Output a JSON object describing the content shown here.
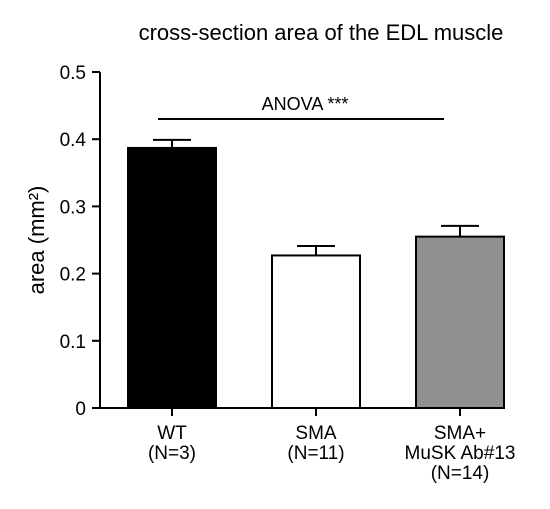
{
  "chart_data": {
    "type": "bar",
    "title": "cross-section area of the EDL muscle",
    "xlabel": "",
    "ylabel": "area (mm²)",
    "ylim": [
      0,
      0.5
    ],
    "yticks": [
      0,
      0.1,
      0.2,
      0.3,
      0.4,
      0.5
    ],
    "ytick_labels": [
      "0",
      "0.1",
      "0.2",
      "0.3",
      "0.4",
      "0.5"
    ],
    "categories": [
      [
        "WT",
        "(N=3)"
      ],
      [
        "SMA",
        "(N=11)"
      ],
      [
        "SMA+",
        "MuSK Ab#13",
        "(N=14)"
      ]
    ],
    "values": [
      0.387,
      0.227,
      0.255
    ],
    "errors": [
      0.012,
      0.014,
      0.016
    ],
    "bar_colors": [
      "#000000",
      "#ffffff",
      "#909090"
    ],
    "annotation": {
      "text": "ANOVA ***",
      "from_category": 0,
      "to_category": 2,
      "y": 0.43
    },
    "grid": false,
    "legend": "none"
  }
}
